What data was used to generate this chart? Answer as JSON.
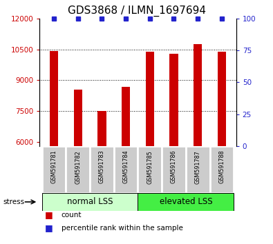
{
  "title": "GDS3868 / ILMN_1697694",
  "samples": [
    "GSM591781",
    "GSM591782",
    "GSM591783",
    "GSM591784",
    "GSM591785",
    "GSM591786",
    "GSM591787",
    "GSM591788"
  ],
  "counts": [
    10430,
    8560,
    7520,
    8680,
    10380,
    10270,
    10760,
    10390
  ],
  "percentile_ranks": [
    100,
    100,
    100,
    100,
    100,
    100,
    100,
    100
  ],
  "ylim_left": [
    5800,
    12000
  ],
  "ylim_right": [
    0,
    100
  ],
  "yticks_left": [
    6000,
    7500,
    9000,
    10500,
    12000
  ],
  "yticks_right": [
    0,
    25,
    50,
    75,
    100
  ],
  "bar_color": "#cc0000",
  "percentile_color": "#2222cc",
  "group_bg_color_light": "#ccffcc",
  "group_bg_color_dark": "#44ee44",
  "sample_bg_color": "#cccccc",
  "legend_count_label": "count",
  "legend_percentile_label": "percentile rank within the sample",
  "title_fontsize": 11,
  "axis_label_color_left": "#cc0000",
  "axis_label_color_right": "#2222cc",
  "bar_width": 0.35
}
